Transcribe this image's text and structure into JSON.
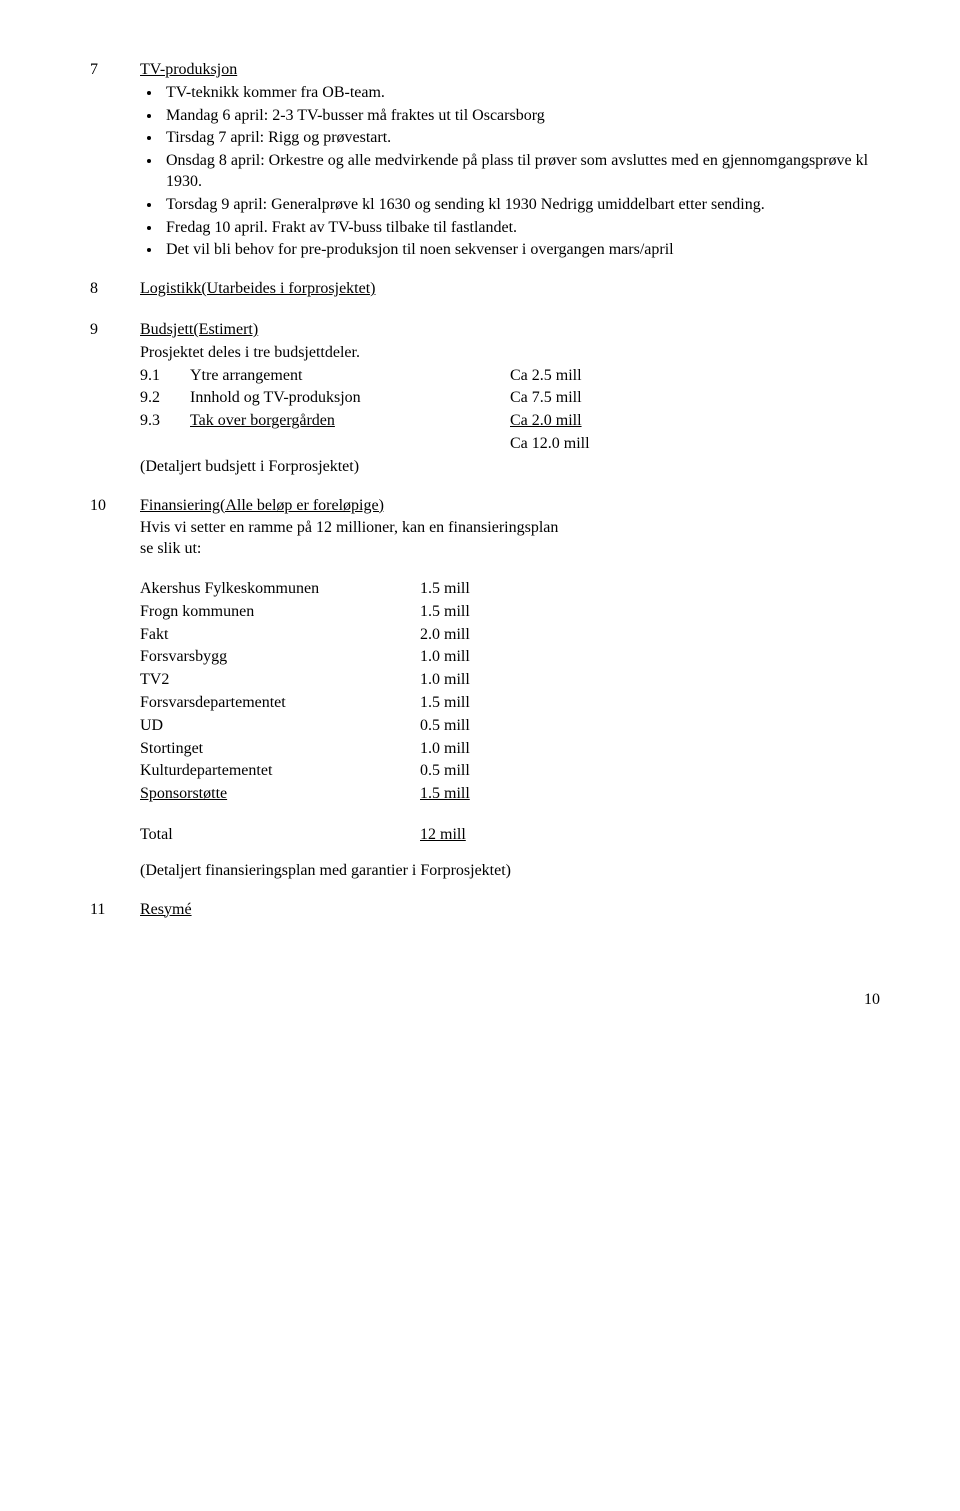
{
  "s7": {
    "num": "7",
    "heading": "TV-produksjon",
    "bullets": [
      "TV-teknikk kommer fra OB-team.",
      "Mandag 6 april: 2-3 TV-busser må fraktes ut til Oscarsborg",
      "Tirsdag 7 april: Rigg og prøvestart.",
      "Onsdag 8 april: Orkestre og alle medvirkende på plass til prøver som avsluttes med en gjennomgangsprøve kl 1930.",
      "Torsdag 9 april: Generalprøve kl 1630 og sending kl 1930 Nedrigg umiddelbart etter sending.",
      "Fredag 10 april. Frakt av TV-buss tilbake til fastlandet.",
      "Det vil bli behov for pre-produksjon til noen sekvenser i overgangen mars/april"
    ]
  },
  "s8": {
    "num": "8",
    "heading": "Logistikk(Utarbeides i forprosjektet)"
  },
  "s9": {
    "num": "9",
    "heading": "Budsjett(Estimert)",
    "intro": "Prosjektet deles i tre budsjettdeler.",
    "rows": [
      {
        "n": "9.1",
        "label": "Ytre arrangement",
        "val": "Ca 2.5 mill"
      },
      {
        "n": "9.2",
        "label": "Innhold og TV-produksjon",
        "val": "Ca 7.5 mill"
      },
      {
        "n": "9.3",
        "label": "Tak over borgergården",
        "val": "Ca 2.0 mill"
      }
    ],
    "total": "Ca 12.0 mill",
    "note": "(Detaljert budsjett i Forprosjektet)"
  },
  "s10": {
    "num": "10",
    "heading": "Finansiering(Alle beløp er foreløpige)",
    "intro1": "Hvis vi  setter en ramme på 12 millioner, kan en finansieringsplan",
    "intro2": "se slik ut:",
    "rows": [
      {
        "label": "Akershus Fylkeskommunen",
        "val": "1.5 mill"
      },
      {
        "label": "Frogn kommunen",
        "val": "1.5 mill"
      },
      {
        "label": "Fakt",
        "val": "2.0 mill"
      },
      {
        "label": "Forsvarsbygg",
        "val": "1.0 mill"
      },
      {
        "label": "TV2",
        "val": "1.0 mill"
      },
      {
        "label": "Forsvarsdepartementet",
        "val": "1.5 mill"
      },
      {
        "label": "UD",
        "val": "0.5 mill"
      },
      {
        "label": "Stortinget",
        "val": "1.0 mill"
      },
      {
        "label": "Kulturdepartementet",
        "val": "0.5 mill"
      }
    ],
    "last": {
      "label": "Sponsorstøtte",
      "val": "1.5 mill"
    },
    "total": {
      "label": "Total",
      "val": "12  mill"
    },
    "note": "(Detaljert finansieringsplan med garantier i Forprosjektet)"
  },
  "s11": {
    "num": "11",
    "heading": "Resymé"
  },
  "pagenum": "10"
}
